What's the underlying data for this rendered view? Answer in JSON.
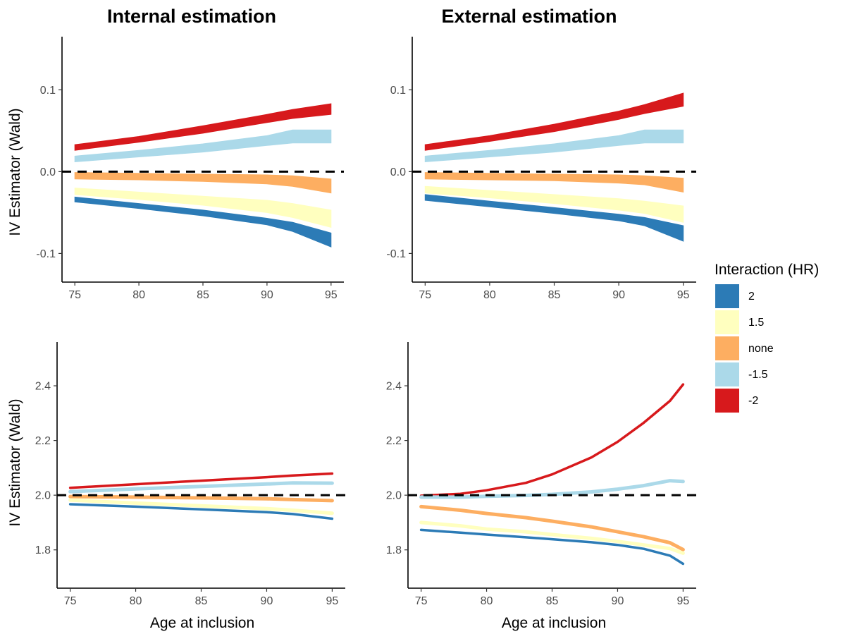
{
  "titles": {
    "left": "Internal estimation",
    "right": "External estimation"
  },
  "legend": {
    "title": "Interaction (HR)",
    "items": [
      {
        "label": "2",
        "color": "#2c7bb6"
      },
      {
        "label": "1.5",
        "color": "#ffffbf"
      },
      {
        "label": "none",
        "color": "#fdae61"
      },
      {
        "label": "-1.5",
        "color": "#abd9e9"
      },
      {
        "label": "-2",
        "color": "#d7191c"
      }
    ]
  },
  "chart_data": [
    {
      "panel": "top-left",
      "type": "area",
      "title": "Internal estimation",
      "xlabel": "",
      "ylabel": "IV Estimator (Wald)",
      "xlim": [
        74,
        96
      ],
      "ylim": [
        -0.135,
        0.165
      ],
      "xticks": [
        "75",
        "80",
        "85",
        "90",
        "95"
      ],
      "xtick_values": [
        75,
        80,
        85,
        90,
        95
      ],
      "yticks": [
        "-0.1",
        "0.0",
        "0.1"
      ],
      "ytick_values": [
        -0.1,
        0.0,
        0.1
      ],
      "reference_line": 0.0,
      "x": [
        75,
        80,
        85,
        90,
        92,
        95
      ],
      "series": [
        {
          "name": "2",
          "color": "#2c7bb6",
          "lower": [
            -0.037,
            -0.045,
            -0.054,
            -0.065,
            -0.073,
            -0.092
          ],
          "upper": [
            -0.031,
            -0.039,
            -0.047,
            -0.057,
            -0.062,
            -0.075
          ]
        },
        {
          "name": "1.5",
          "color": "#ffffbf",
          "lower": [
            -0.028,
            -0.034,
            -0.041,
            -0.05,
            -0.056,
            -0.068
          ],
          "upper": [
            -0.02,
            -0.025,
            -0.03,
            -0.035,
            -0.039,
            -0.047
          ]
        },
        {
          "name": "none",
          "color": "#fdae61",
          "lower": [
            -0.009,
            -0.01,
            -0.012,
            -0.015,
            -0.018,
            -0.026
          ],
          "upper": [
            -0.001,
            -0.002,
            -0.003,
            -0.004,
            -0.005,
            -0.009
          ]
        },
        {
          "name": "-1.5",
          "color": "#abd9e9",
          "lower": [
            0.012,
            0.018,
            0.024,
            0.032,
            0.035,
            0.035
          ],
          "upper": [
            0.019,
            0.026,
            0.034,
            0.044,
            0.051,
            0.051
          ]
        },
        {
          "name": "-2",
          "color": "#d7191c",
          "lower": [
            0.026,
            0.036,
            0.047,
            0.06,
            0.065,
            0.07
          ],
          "upper": [
            0.033,
            0.043,
            0.056,
            0.07,
            0.076,
            0.083
          ]
        }
      ]
    },
    {
      "panel": "top-right",
      "type": "area",
      "title": "External estimation",
      "xlabel": "",
      "ylabel": "",
      "xlim": [
        74,
        96
      ],
      "ylim": [
        -0.135,
        0.165
      ],
      "xticks": [
        "75",
        "80",
        "85",
        "90",
        "95"
      ],
      "xtick_values": [
        75,
        80,
        85,
        90,
        95
      ],
      "yticks": [
        "-0.1",
        "0.0",
        "0.1"
      ],
      "ytick_values": [
        -0.1,
        0.0,
        0.1
      ],
      "reference_line": 0.0,
      "x": [
        75,
        80,
        85,
        90,
        92,
        95
      ],
      "series": [
        {
          "name": "2",
          "color": "#2c7bb6",
          "lower": [
            -0.035,
            -0.043,
            -0.051,
            -0.06,
            -0.066,
            -0.085
          ],
          "upper": [
            -0.028,
            -0.036,
            -0.044,
            -0.052,
            -0.056,
            -0.066
          ]
        },
        {
          "name": "1.5",
          "color": "#ffffbf",
          "lower": [
            -0.026,
            -0.032,
            -0.039,
            -0.047,
            -0.051,
            -0.062
          ],
          "upper": [
            -0.018,
            -0.023,
            -0.028,
            -0.033,
            -0.036,
            -0.042
          ]
        },
        {
          "name": "none",
          "color": "#fdae61",
          "lower": [
            -0.009,
            -0.01,
            -0.011,
            -0.014,
            -0.016,
            -0.025
          ],
          "upper": [
            -0.001,
            -0.002,
            -0.003,
            -0.004,
            -0.005,
            -0.008
          ]
        },
        {
          "name": "-1.5",
          "color": "#abd9e9",
          "lower": [
            0.012,
            0.018,
            0.024,
            0.032,
            0.035,
            0.035
          ],
          "upper": [
            0.019,
            0.026,
            0.034,
            0.044,
            0.051,
            0.051
          ]
        },
        {
          "name": "-2",
          "color": "#d7191c",
          "lower": [
            0.026,
            0.037,
            0.049,
            0.064,
            0.071,
            0.08
          ],
          "upper": [
            0.033,
            0.044,
            0.058,
            0.074,
            0.082,
            0.096
          ]
        }
      ]
    },
    {
      "panel": "bottom-left",
      "type": "line",
      "title": "",
      "xlabel": "Age at inclusion",
      "ylabel": "IV Estimator (Wald)",
      "xlim": [
        74,
        96
      ],
      "ylim": [
        1.66,
        2.56
      ],
      "xticks": [
        "75",
        "80",
        "85",
        "90",
        "95"
      ],
      "xtick_values": [
        75,
        80,
        85,
        90,
        95
      ],
      "yticks": [
        "1.8",
        "2.0",
        "2.2",
        "2.4"
      ],
      "ytick_values": [
        1.8,
        2.0,
        2.2,
        2.4
      ],
      "reference_line": 2.0,
      "x": [
        75,
        80,
        85,
        90,
        92,
        95
      ],
      "series": [
        {
          "name": "-2",
          "color": "#d7191c",
          "width": 3.5,
          "values": [
            2.027,
            2.04,
            2.053,
            2.066,
            2.072,
            2.079
          ]
        },
        {
          "name": "-1.5",
          "color": "#abd9e9",
          "width": 5,
          "values": [
            2.013,
            2.023,
            2.032,
            2.041,
            2.045,
            2.044
          ]
        },
        {
          "name": "none",
          "color": "#fdae61",
          "width": 5,
          "values": [
            1.995,
            1.993,
            1.99,
            1.987,
            1.984,
            1.98
          ]
        },
        {
          "name": "1.5",
          "color": "#ffffbf",
          "width": 5,
          "values": [
            1.982,
            1.971,
            1.961,
            1.951,
            1.945,
            1.934
          ]
        },
        {
          "name": "2",
          "color": "#2c7bb6",
          "width": 3.5,
          "values": [
            1.967,
            1.958,
            1.948,
            1.938,
            1.931,
            1.914
          ]
        }
      ]
    },
    {
      "panel": "bottom-right",
      "type": "line",
      "title": "",
      "xlabel": "Age at inclusion",
      "ylabel": "",
      "xlim": [
        74,
        96
      ],
      "ylim": [
        1.66,
        2.56
      ],
      "xticks": [
        "75",
        "80",
        "85",
        "90",
        "95"
      ],
      "xtick_values": [
        75,
        80,
        85,
        90,
        95
      ],
      "yticks": [
        "1.8",
        "2.0",
        "2.2",
        "2.4"
      ],
      "ytick_values": [
        1.8,
        2.0,
        2.2,
        2.4
      ],
      "reference_line": 2.0,
      "x": [
        75,
        78,
        80,
        83,
        85,
        88,
        90,
        92,
        94,
        95
      ],
      "series": [
        {
          "name": "-2",
          "color": "#d7191c",
          "width": 3.5,
          "values": [
            1.998,
            2.005,
            2.018,
            2.045,
            2.076,
            2.138,
            2.195,
            2.265,
            2.345,
            2.405
          ]
        },
        {
          "name": "-1.5",
          "color": "#abd9e9",
          "width": 5,
          "values": [
            1.993,
            1.993,
            1.996,
            1.999,
            2.003,
            2.012,
            2.022,
            2.035,
            2.053,
            2.05
          ]
        },
        {
          "name": "none",
          "color": "#fdae61",
          "width": 5,
          "values": [
            1.958,
            1.945,
            1.933,
            1.918,
            1.905,
            1.884,
            1.866,
            1.848,
            1.826,
            1.801
          ]
        },
        {
          "name": "1.5",
          "color": "#ffffbf",
          "width": 5,
          "values": [
            1.9,
            1.888,
            1.876,
            1.866,
            1.856,
            1.842,
            1.831,
            1.818,
            1.805,
            1.788
          ]
        },
        {
          "name": "2",
          "color": "#2c7bb6",
          "width": 3.5,
          "values": [
            1.873,
            1.863,
            1.856,
            1.846,
            1.839,
            1.828,
            1.818,
            1.804,
            1.779,
            1.749
          ]
        }
      ]
    }
  ]
}
